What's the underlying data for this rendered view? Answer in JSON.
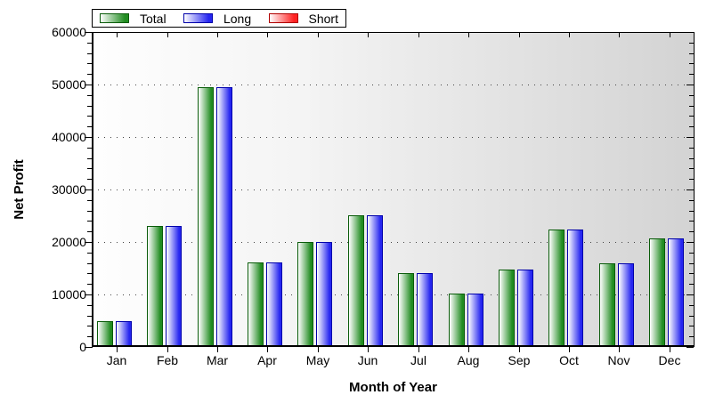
{
  "chart_data": {
    "type": "bar",
    "title": "",
    "xlabel": "Month of Year",
    "ylabel": "Net Profit",
    "categories": [
      "Jan",
      "Feb",
      "Mar",
      "Apr",
      "May",
      "Jun",
      "Jul",
      "Aug",
      "Sep",
      "Oct",
      "Nov",
      "Dec"
    ],
    "series": [
      {
        "name": "Total",
        "color": "#218c21",
        "border_color": "#0a5c0a",
        "values": [
          4900,
          23100,
          49500,
          16100,
          20000,
          25100,
          14000,
          10200,
          14800,
          22400,
          16000,
          20600
        ]
      },
      {
        "name": "Long",
        "color": "#2626f0",
        "border_color": "#0000aa",
        "values": [
          4900,
          23100,
          49500,
          16100,
          20000,
          25100,
          14000,
          10200,
          14800,
          22400,
          16000,
          20600
        ]
      },
      {
        "name": "Short",
        "color": "#ff2222",
        "border_color": "#b00000",
        "values": [
          0,
          0,
          0,
          0,
          0,
          0,
          0,
          0,
          0,
          0,
          0,
          0
        ]
      }
    ],
    "ylim": [
      0,
      60000
    ],
    "y_ticks": [
      0,
      10000,
      20000,
      30000,
      40000,
      50000,
      60000
    ],
    "y_minor_step": 2000,
    "grid": "horizontal-dotted",
    "legend_position": "top-left",
    "plot_bg_gradient": [
      "#fefefe",
      "#d3d3d3"
    ],
    "axis_color": "#000000",
    "bar_gradient_start": "#ffffff"
  }
}
